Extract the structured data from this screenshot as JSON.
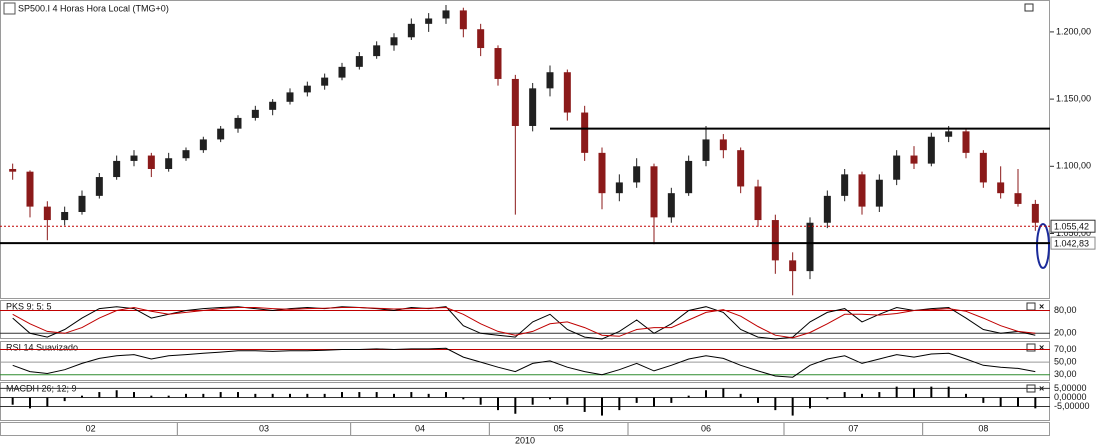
{
  "chart_data": {
    "type": "candlestick",
    "title": "SP500.I 4 Horas Hora Local (TMG+0)",
    "x_label": "2010",
    "colors": {
      "up": "#202020",
      "down": "#8b1a1a"
    },
    "ylim": [
      1002,
      1223
    ],
    "yticks": [
      {
        "value": 1050,
        "label": "1.050,00"
      },
      {
        "value": 1100,
        "label": "1.100,00"
      },
      {
        "value": 1150,
        "label": "1.150,00"
      },
      {
        "value": 1200,
        "label": "1.200,00"
      }
    ],
    "levels": [
      {
        "value": 1128,
        "color": "#000000"
      },
      {
        "value": 1042.83,
        "label": "1.042,83",
        "color": "#000000",
        "label_color": "#c00000"
      }
    ],
    "last_price": {
      "value": 1055.42,
      "label": "1.055,42",
      "color": "#c00000"
    },
    "months": [
      {
        "label": "02",
        "candles": [
          [
            1098,
            1102,
            1090,
            1096
          ],
          [
            1096,
            1097,
            1062,
            1070
          ],
          [
            1070,
            1074,
            1045,
            1060
          ],
          [
            1060,
            1070,
            1056,
            1066
          ],
          [
            1066,
            1082,
            1064,
            1078
          ],
          [
            1078,
            1095,
            1076,
            1092
          ],
          [
            1092,
            1108,
            1090,
            1104
          ],
          [
            1104,
            1112,
            1100,
            1108
          ],
          [
            1108,
            1110,
            1092,
            1098
          ],
          [
            1098,
            1110,
            1096,
            1106
          ]
        ]
      },
      {
        "label": "03",
        "candles": [
          [
            1106,
            1114,
            1104,
            1112
          ],
          [
            1112,
            1122,
            1110,
            1120
          ],
          [
            1120,
            1130,
            1118,
            1128
          ],
          [
            1128,
            1138,
            1125,
            1136
          ],
          [
            1136,
            1145,
            1134,
            1142
          ],
          [
            1142,
            1150,
            1138,
            1148
          ],
          [
            1148,
            1158,
            1146,
            1155
          ],
          [
            1155,
            1163,
            1152,
            1160
          ],
          [
            1160,
            1169,
            1157,
            1166
          ],
          [
            1166,
            1177,
            1164,
            1174
          ]
        ]
      },
      {
        "label": "04",
        "candles": [
          [
            1174,
            1185,
            1172,
            1182
          ],
          [
            1182,
            1193,
            1180,
            1190
          ],
          [
            1190,
            1199,
            1186,
            1196
          ],
          [
            1196,
            1210,
            1194,
            1206
          ],
          [
            1206,
            1214,
            1200,
            1210
          ],
          [
            1210,
            1220,
            1206,
            1216
          ],
          [
            1216,
            1218,
            1196,
            1202
          ],
          [
            1202,
            1206,
            1182,
            1188
          ]
        ]
      },
      {
        "label": "05",
        "candles": [
          [
            1188,
            1190,
            1160,
            1165
          ],
          [
            1165,
            1168,
            1064,
            1130
          ],
          [
            1130,
            1162,
            1126,
            1158
          ],
          [
            1158,
            1175,
            1152,
            1170
          ],
          [
            1170,
            1172,
            1134,
            1140
          ],
          [
            1140,
            1145,
            1104,
            1110
          ],
          [
            1110,
            1114,
            1068,
            1080
          ],
          [
            1080,
            1094,
            1074,
            1088
          ]
        ]
      },
      {
        "label": "06",
        "candles": [
          [
            1088,
            1106,
            1084,
            1100
          ],
          [
            1100,
            1102,
            1042,
            1062
          ],
          [
            1062,
            1084,
            1058,
            1080
          ],
          [
            1080,
            1108,
            1078,
            1104
          ],
          [
            1104,
            1130,
            1100,
            1120
          ],
          [
            1120,
            1124,
            1106,
            1112
          ],
          [
            1112,
            1114,
            1080,
            1085
          ],
          [
            1085,
            1090,
            1055,
            1060
          ],
          [
            1060,
            1064,
            1020,
            1030
          ]
        ]
      },
      {
        "label": "07",
        "candles": [
          [
            1030,
            1036,
            1004,
            1022
          ],
          [
            1022,
            1062,
            1016,
            1058
          ],
          [
            1058,
            1082,
            1054,
            1078
          ],
          [
            1078,
            1098,
            1074,
            1094
          ],
          [
            1094,
            1096,
            1064,
            1070
          ],
          [
            1070,
            1094,
            1066,
            1090
          ],
          [
            1090,
            1112,
            1086,
            1108
          ],
          [
            1108,
            1115,
            1098,
            1102
          ]
        ]
      },
      {
        "label": "08",
        "candles": [
          [
            1102,
            1125,
            1100,
            1122
          ],
          [
            1122,
            1130,
            1118,
            1126
          ],
          [
            1126,
            1128,
            1106,
            1110
          ],
          [
            1110,
            1112,
            1084,
            1088
          ],
          [
            1088,
            1100,
            1076,
            1080
          ],
          [
            1080,
            1098,
            1070,
            1072
          ],
          [
            1072,
            1075,
            1052,
            1058
          ]
        ]
      }
    ],
    "indicators": [
      {
        "type": "line",
        "title": "PKS 9; 5; 5",
        "ylim": [
          5,
          105
        ],
        "yticks": [
          {
            "value": 80,
            "label": "80,00",
            "color": "#c00000"
          },
          {
            "value": 20,
            "label": "20,00",
            "color": "#333333"
          }
        ],
        "series": [
          {
            "color": "#000000",
            "values": [
              60,
              20,
              10,
              30,
              60,
              85,
              90,
              85,
              60,
              70,
              80,
              85,
              88,
              90,
              85,
              80,
              85,
              88,
              85,
              90,
              88,
              85,
              80,
              88,
              85,
              90,
              40,
              20,
              15,
              10,
              50,
              70,
              30,
              10,
              5,
              25,
              55,
              20,
              45,
              80,
              90,
              75,
              30,
              10,
              5,
              10,
              50,
              75,
              85,
              50,
              70,
              88,
              80,
              85,
              88,
              60,
              30,
              20,
              25,
              15
            ]
          },
          {
            "color": "#c00000",
            "values": [
              70,
              45,
              25,
              20,
              35,
              60,
              80,
              88,
              78,
              70,
              75,
              80,
              85,
              88,
              88,
              85,
              83,
              85,
              86,
              88,
              88,
              86,
              84,
              85,
              86,
              88,
              70,
              45,
              25,
              15,
              25,
              45,
              50,
              35,
              15,
              12,
              30,
              35,
              35,
              55,
              75,
              82,
              65,
              38,
              15,
              8,
              22,
              45,
              70,
              70,
              68,
              72,
              80,
              82,
              85,
              78,
              60,
              40,
              25,
              20
            ]
          }
        ]
      },
      {
        "type": "line",
        "title": "RSI 14 Suavizado",
        "ylim": [
          20,
          82
        ],
        "yticks": [
          {
            "value": 70,
            "label": "70,00",
            "color": "#c00000"
          },
          {
            "value": 50,
            "label": "50,00",
            "color": "#999999"
          },
          {
            "value": 30,
            "label": "30,00",
            "color": "#2e8b2e"
          }
        ],
        "series": [
          {
            "color": "#000000",
            "values": [
              45,
              35,
              32,
              38,
              48,
              56,
              60,
              62,
              55,
              60,
              62,
              64,
              66,
              68,
              68,
              67,
              68,
              68,
              69,
              70,
              70,
              71,
              70,
              71,
              71,
              72,
              58,
              50,
              42,
              35,
              48,
              52,
              42,
              35,
              30,
              38,
              48,
              36,
              45,
              55,
              60,
              56,
              45,
              36,
              28,
              26,
              45,
              55,
              60,
              48,
              55,
              62,
              58,
              63,
              64,
              55,
              45,
              42,
              40,
              35
            ]
          }
        ]
      },
      {
        "type": "bar",
        "title": "MACDH 26; 12; 9",
        "ylim": [
          -13,
          8
        ],
        "yticks": [
          {
            "value": 5,
            "label": "5,00000",
            "color": "#333333"
          },
          {
            "value": 0,
            "label": "0,00000",
            "color": "#333333"
          },
          {
            "value": -5,
            "label": "-5,00000",
            "color": "#333333"
          }
        ],
        "series": [
          {
            "color": "#000000",
            "values": [
              -4,
              -6,
              -5,
              -2,
              1,
              3,
              4,
              3,
              1,
              1,
              2,
              2,
              3,
              3,
              2,
              2,
              2,
              2,
              2,
              3,
              3,
              3,
              2,
              3,
              2,
              3,
              -1,
              -4,
              -7,
              -9,
              -4,
              -1,
              -4,
              -8,
              -10,
              -7,
              -3,
              -5,
              -3,
              1,
              4,
              5,
              2,
              -3,
              -7,
              -10,
              -6,
              -1,
              3,
              2,
              3,
              6,
              5,
              6,
              6,
              2,
              -3,
              -5,
              -5,
              -6
            ]
          }
        ]
      }
    ]
  }
}
